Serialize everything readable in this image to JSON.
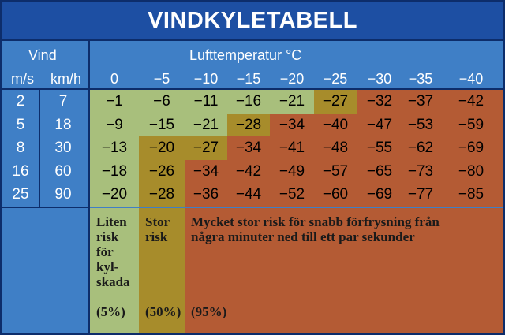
{
  "title": "VINDKYLETABELL",
  "headers": {
    "vind": "Vind",
    "ms": "m/s",
    "kmh": "km/h",
    "lufttemp": "Lufttemperatur °C"
  },
  "temps": [
    "0",
    "−5",
    "−10",
    "−15",
    "−20",
    "−25",
    "−30",
    "−35",
    "−40"
  ],
  "rows": [
    {
      "ms": "2",
      "kmh": "7",
      "values": [
        "−1",
        "−6",
        "−11",
        "−16",
        "−21",
        "−27",
        "−32",
        "−37",
        "−42"
      ],
      "risk": [
        1,
        1,
        1,
        1,
        1,
        2,
        3,
        3,
        3
      ]
    },
    {
      "ms": "5",
      "kmh": "18",
      "values": [
        "−9",
        "−15",
        "−21",
        "−28",
        "−34",
        "−40",
        "−47",
        "−53",
        "−59"
      ],
      "risk": [
        1,
        1,
        1,
        2,
        3,
        3,
        3,
        3,
        3
      ]
    },
    {
      "ms": "8",
      "kmh": "30",
      "values": [
        "−13",
        "−20",
        "−27",
        "−34",
        "−41",
        "−48",
        "−55",
        "−62",
        "−69"
      ],
      "risk": [
        1,
        2,
        2,
        3,
        3,
        3,
        3,
        3,
        3
      ]
    },
    {
      "ms": "16",
      "kmh": "60",
      "values": [
        "−18",
        "−26",
        "−34",
        "−42",
        "−49",
        "−57",
        "−65",
        "−73",
        "−80"
      ],
      "risk": [
        1,
        2,
        3,
        3,
        3,
        3,
        3,
        3,
        3
      ]
    },
    {
      "ms": "25",
      "kmh": "90",
      "values": [
        "−20",
        "−28",
        "−36",
        "−44",
        "−52",
        "−60",
        "−69",
        "−77",
        "−85"
      ],
      "risk": [
        1,
        2,
        3,
        3,
        3,
        3,
        3,
        3,
        3
      ]
    }
  ],
  "legend": {
    "low": {
      "lines": [
        "Liten",
        "risk",
        "för",
        "kyl-",
        "skada"
      ],
      "pct": "(5%)"
    },
    "high": {
      "lines": [
        "Stor",
        "risk"
      ],
      "pct": "(50%)"
    },
    "very": {
      "lines": [
        "Mycket stor risk för snabb förfrysning från",
        "några minuter ned till ett par sekunder"
      ],
      "pct": "(95%)"
    }
  },
  "colors": {
    "frame": "#0d2d6b",
    "title_bg": "#1d4fa3",
    "blue": "#3f7fc6",
    "risk1": "#a8bf7c",
    "risk2": "#a78c2b",
    "risk3": "#b45b34"
  }
}
